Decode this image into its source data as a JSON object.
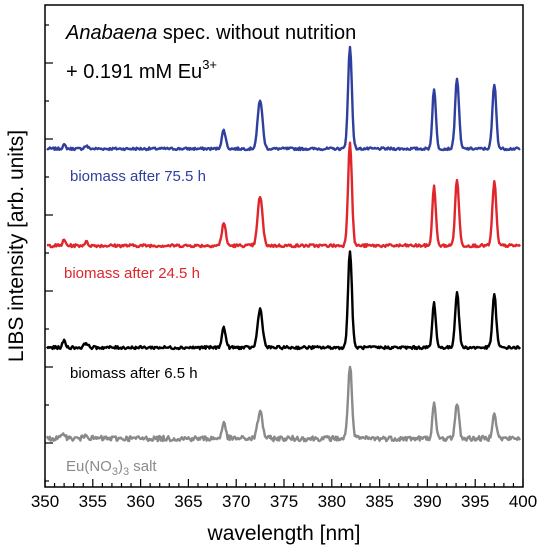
{
  "chart_data": {
    "type": "line",
    "xlabel": "wavelength [nm]",
    "ylabel": "LIBS intensity [arb. units]",
    "xlim": [
      350,
      400
    ],
    "x_ticks": [
      "350",
      "355",
      "360",
      "365",
      "370",
      "375",
      "380",
      "385",
      "390",
      "395",
      "400"
    ],
    "annotation": {
      "line1_italic": "Anabaena",
      "line1_rest": " spec. without nutrition",
      "line2_main": "+ 0.191 mM Eu",
      "line2_sup": "3+"
    },
    "legend": "inline labels below each trace",
    "grid": false,
    "peaks_nm": [
      352.0,
      354.3,
      368.7,
      372.5,
      381.9,
      390.7,
      393.1,
      397.0
    ],
    "series": [
      {
        "name": "biomass after 75.5 h",
        "color": "#2e3f9e",
        "baseline": 0.06,
        "noise": 0.012,
        "peaks": [
          0.035,
          0.028,
          0.18,
          0.47,
          0.98,
          0.58,
          0.68,
          0.62
        ]
      },
      {
        "name": "biomass after 24.5 h",
        "color": "#e0262b",
        "baseline": 0.07,
        "noise": 0.014,
        "peaks": [
          0.05,
          0.035,
          0.22,
          0.47,
          0.99,
          0.57,
          0.63,
          0.61
        ]
      },
      {
        "name": "biomass after 6.5 h",
        "color": "#000000",
        "baseline": 0.075,
        "noise": 0.015,
        "peaks": [
          0.07,
          0.05,
          0.2,
          0.39,
          0.98,
          0.45,
          0.56,
          0.53
        ]
      },
      {
        "name": "Eu(NO3)3 salt",
        "name_parts": [
          "Eu(NO",
          "3",
          ")",
          "3",
          " salt"
        ],
        "color": "#8a8a8a",
        "baseline": 0.18,
        "noise": 0.035,
        "peaks": [
          0.08,
          0.07,
          0.2,
          0.36,
          0.98,
          0.45,
          0.47,
          0.35
        ]
      }
    ]
  }
}
